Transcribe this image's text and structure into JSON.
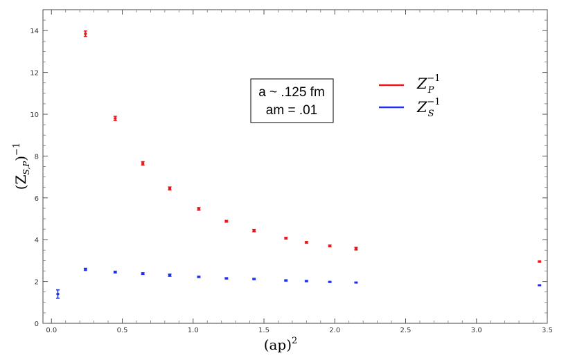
{
  "chart_data": {
    "type": "scatter",
    "title": "",
    "xlabel_base": "(ap)",
    "xlabel_exp": "2",
    "ylabel_base": "(Z",
    "ylabel_sub": "S,P",
    "ylabel_close": ")",
    "ylabel_exp": "−1",
    "xlim": [
      -0.06,
      3.5
    ],
    "ylim": [
      0,
      15
    ],
    "xticks": [
      0.0,
      0.5,
      1.0,
      1.5,
      2.0,
      2.5,
      3.0,
      3.5
    ],
    "xtick_labels": [
      "0.0",
      "0.5",
      "1.0",
      "1.5",
      "2.0",
      "2.5",
      "3.0",
      "3.5"
    ],
    "yticks": [
      0,
      2,
      4,
      6,
      8,
      10,
      12,
      14
    ],
    "ytick_labels": [
      "0",
      "2",
      "4",
      "6",
      "8",
      "10",
      "12",
      "14"
    ],
    "annotation": {
      "line1": "a ~ .125 fm",
      "line2": "am = .01"
    },
    "series": [
      {
        "name": "Z_P^{-1}",
        "legend_base": "Z",
        "legend_sub": "P",
        "legend_exp": "−1",
        "color": "#e8161b",
        "x": [
          0.24,
          0.45,
          0.645,
          0.835,
          1.04,
          1.235,
          1.43,
          1.655,
          1.8,
          1.965,
          2.15,
          3.445
        ],
        "y": [
          13.85,
          9.8,
          7.65,
          6.45,
          5.47,
          4.88,
          4.43,
          4.07,
          3.87,
          3.7,
          3.57,
          2.95
        ],
        "err": [
          0.13,
          0.1,
          0.08,
          0.07,
          0.06,
          0.04,
          0.05,
          0.04,
          0.04,
          0.04,
          0.06,
          0.03
        ]
      },
      {
        "name": "Z_S^{-1}",
        "legend_base": "Z",
        "legend_sub": "S",
        "legend_exp": "−1",
        "color": "#1e2ff0",
        "x": [
          0.045,
          0.24,
          0.45,
          0.645,
          0.835,
          1.04,
          1.235,
          1.43,
          1.655,
          1.8,
          1.965,
          2.15,
          3.445
        ],
        "y": [
          1.4,
          2.58,
          2.45,
          2.38,
          2.3,
          2.22,
          2.15,
          2.12,
          2.05,
          2.02,
          1.98,
          1.95,
          1.82
        ],
        "err": [
          0.2,
          0.05,
          0.04,
          0.04,
          0.05,
          0.03,
          0.03,
          0.03,
          0.03,
          0.03,
          0.02,
          0.02,
          0.02
        ]
      }
    ]
  }
}
